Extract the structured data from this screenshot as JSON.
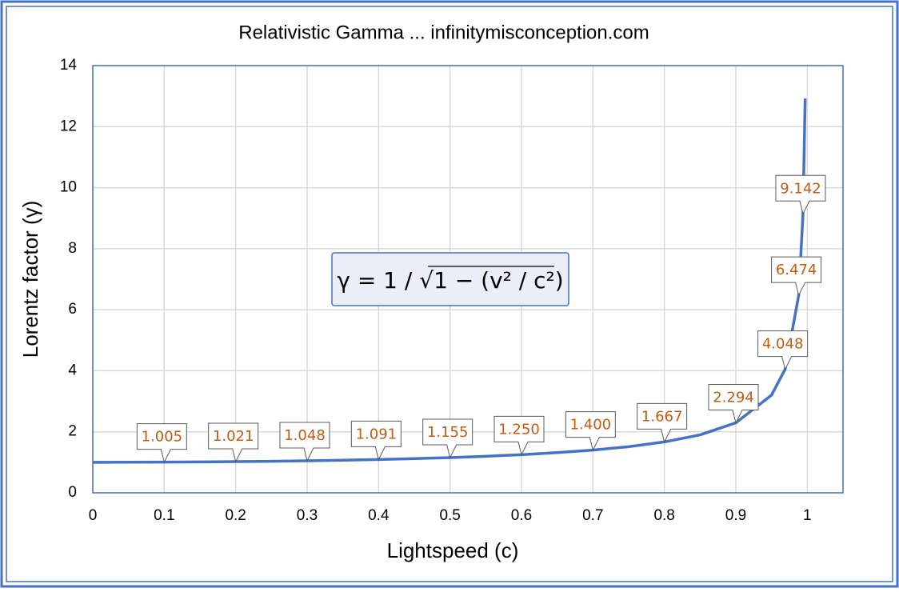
{
  "chart_data": {
    "type": "line",
    "title": "Relativistic Gamma ... infinitymisconception.com",
    "x_label": "Lightspeed (c)",
    "y_label": "Lorentz factor (γ)",
    "annotation": "γ = 1 / √1 − (v² / c²)",
    "x": [
      0,
      0.05,
      0.1,
      0.15,
      0.2,
      0.25,
      0.3,
      0.35,
      0.4,
      0.45,
      0.5,
      0.55,
      0.6,
      0.65,
      0.7,
      0.75,
      0.8,
      0.85,
      0.9,
      0.95,
      0.969,
      0.988,
      0.994,
      0.997
    ],
    "series": [
      {
        "name": "Lorentz factor",
        "color": "#4472c4",
        "values": [
          1,
          1.0013,
          1.005,
          1.0114,
          1.021,
          1.0328,
          1.048,
          1.0675,
          1.091,
          1.1198,
          1.155,
          1.1974,
          1.25,
          1.3159,
          1.4,
          1.5119,
          1.667,
          1.8983,
          2.294,
          3.2026,
          4.048,
          6.474,
          9.142,
          12.92
        ],
        "value_labels": [
          null,
          null,
          "1.005",
          null,
          "1.021",
          null,
          "1.048",
          null,
          "1.091",
          null,
          "1.155",
          null,
          "1.250",
          null,
          "1.400",
          null,
          "1.667",
          null,
          "2.294",
          null,
          "4.048",
          "6.474",
          "9.142",
          null
        ]
      }
    ],
    "xlim": [
      0,
      1.05
    ],
    "ylim": [
      0,
      14
    ],
    "xticks": [
      0,
      0.1,
      0.2,
      0.3,
      0.4,
      0.5,
      0.6,
      0.7,
      0.8,
      0.9,
      1
    ],
    "yticks": [
      0,
      2,
      4,
      6,
      8,
      10,
      12,
      14
    ],
    "grid": true
  }
}
